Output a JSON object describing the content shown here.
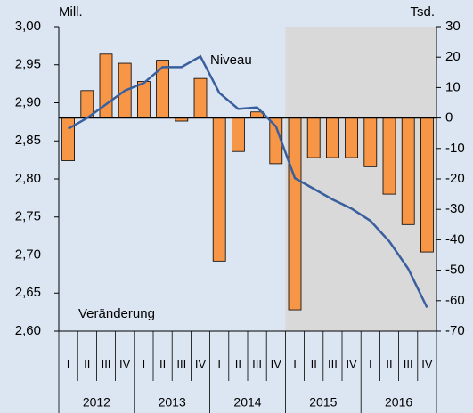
{
  "chart_data": {
    "type": "bar_line",
    "y_label": "Mill.",
    "y2_label": "Tsd.",
    "categories": [
      "I",
      "II",
      "III",
      "IV",
      "I",
      "II",
      "III",
      "IV",
      "I",
      "II",
      "III",
      "IV",
      "I",
      "II",
      "III",
      "IV",
      "I",
      "II",
      "III",
      "IV"
    ],
    "years": [
      "2012",
      "2013",
      "2014",
      "2015",
      "2016"
    ],
    "shade_from_year": "2015",
    "series": [
      {
        "name": "Veränderung",
        "type": "bar",
        "axis": "y2",
        "color": "#f79646",
        "values": [
          -14,
          9,
          21,
          18,
          12,
          19,
          -1,
          13,
          -47,
          -11,
          2,
          -15,
          -63,
          -13,
          -13,
          -13,
          -16,
          -25,
          -35,
          -44
        ]
      },
      {
        "name": "Niveau",
        "type": "line",
        "axis": "y",
        "color": "#3a5f9e",
        "values": [
          2.866,
          2.88,
          2.898,
          2.916,
          2.926,
          2.947,
          2.947,
          2.961,
          2.913,
          2.892,
          2.894,
          2.869,
          2.801,
          2.787,
          2.773,
          2.761,
          2.745,
          2.718,
          2.682,
          2.631
        ]
      }
    ],
    "ylim": [
      2.6,
      3.0
    ],
    "yticks": [
      {
        "value": 2.6,
        "label": "2,60"
      },
      {
        "value": 2.65,
        "label": "2,65"
      },
      {
        "value": 2.7,
        "label": "2,70"
      },
      {
        "value": 2.75,
        "label": "2,75"
      },
      {
        "value": 2.8,
        "label": "2,80"
      },
      {
        "value": 2.85,
        "label": "2,85"
      },
      {
        "value": 2.9,
        "label": "2,90"
      },
      {
        "value": 2.95,
        "label": "2,95"
      },
      {
        "value": 3.0,
        "label": "3,00"
      }
    ],
    "y2lim": [
      -70,
      30
    ],
    "y2ticks": [
      -70,
      -60,
      -50,
      -40,
      -30,
      -20,
      -10,
      0,
      10,
      20,
      30
    ]
  }
}
